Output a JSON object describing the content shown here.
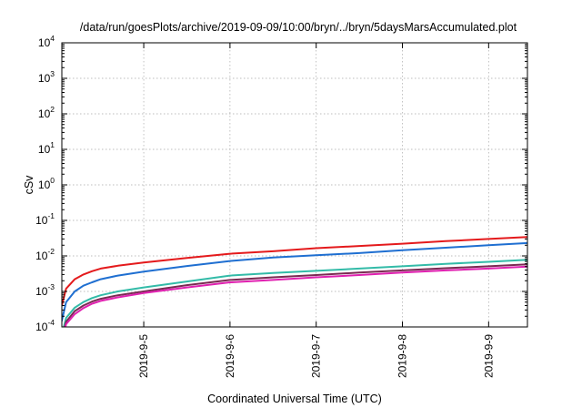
{
  "chart_data": {
    "type": "line",
    "title": "/data/run/goesPlots/archive/2019-09-09/10:00/bryn/../bryn/5daysMarsAccumulated.plot",
    "xlabel": "Coordinated Universal Time (UTC)",
    "ylabel": "cSv",
    "y_scale": "log",
    "ylim": [
      0.0001,
      10000
    ],
    "y_ticks": [
      {
        "value": 0.0001,
        "base": "10",
        "exp": "-4"
      },
      {
        "value": 0.001,
        "base": "10",
        "exp": "-3"
      },
      {
        "value": 0.01,
        "base": "10",
        "exp": "-2"
      },
      {
        "value": 0.1,
        "base": "10",
        "exp": "-1"
      },
      {
        "value": 1,
        "base": "10",
        "exp": "0"
      },
      {
        "value": 10,
        "base": "10",
        "exp": "1"
      },
      {
        "value": 100,
        "base": "10",
        "exp": "2"
      },
      {
        "value": 1000,
        "base": "10",
        "exp": "3"
      },
      {
        "value": 10000,
        "base": "10",
        "exp": "4"
      }
    ],
    "xlim": [
      4.05,
      9.45
    ],
    "x_ticks": [
      {
        "value": 5,
        "label": "2019-9-5"
      },
      {
        "value": 6,
        "label": "2019-9-6"
      },
      {
        "value": 7,
        "label": "2019-9-7"
      },
      {
        "value": 8,
        "label": "2019-9-8"
      },
      {
        "value": 9,
        "label": "2019-9-9"
      }
    ],
    "grid": true,
    "x": [
      4.05,
      4.1,
      4.2,
      4.3,
      4.4,
      4.5,
      4.7,
      5.0,
      5.5,
      6.0,
      6.5,
      7.0,
      7.5,
      8.0,
      8.5,
      9.0,
      9.45
    ],
    "series": [
      {
        "color": "#e41a1c",
        "values": [
          0.0004,
          0.0012,
          0.0022,
          0.003,
          0.0037,
          0.0044,
          0.0053,
          0.0065,
          0.0088,
          0.0115,
          0.0135,
          0.0165,
          0.019,
          0.022,
          0.026,
          0.03,
          0.034
        ]
      },
      {
        "color": "#1f6fd1",
        "values": [
          0.00015,
          0.0005,
          0.001,
          0.00145,
          0.0018,
          0.0022,
          0.0028,
          0.0036,
          0.0052,
          0.0072,
          0.009,
          0.0105,
          0.012,
          0.0145,
          0.017,
          0.02,
          0.023
        ]
      },
      {
        "color": "#33bba8",
        "values": [
          6e-05,
          0.00018,
          0.00035,
          0.0005,
          0.00065,
          0.00078,
          0.001,
          0.0013,
          0.0019,
          0.0028,
          0.0033,
          0.0038,
          0.0044,
          0.0051,
          0.006,
          0.0068,
          0.0078
        ]
      },
      {
        "color": "#7a2a52",
        "values": [
          5e-05,
          0.00014,
          0.00028,
          0.0004,
          0.00052,
          0.00062,
          0.00078,
          0.001,
          0.0015,
          0.0021,
          0.0025,
          0.0029,
          0.0034,
          0.0039,
          0.0045,
          0.0051,
          0.0058
        ]
      },
      {
        "color": "#e020b0",
        "values": [
          4e-05,
          0.00012,
          0.00023,
          0.00034,
          0.00045,
          0.00054,
          0.00068,
          0.0009,
          0.0013,
          0.0018,
          0.0021,
          0.0025,
          0.0029,
          0.0034,
          0.0039,
          0.0044,
          0.005
        ]
      }
    ]
  }
}
